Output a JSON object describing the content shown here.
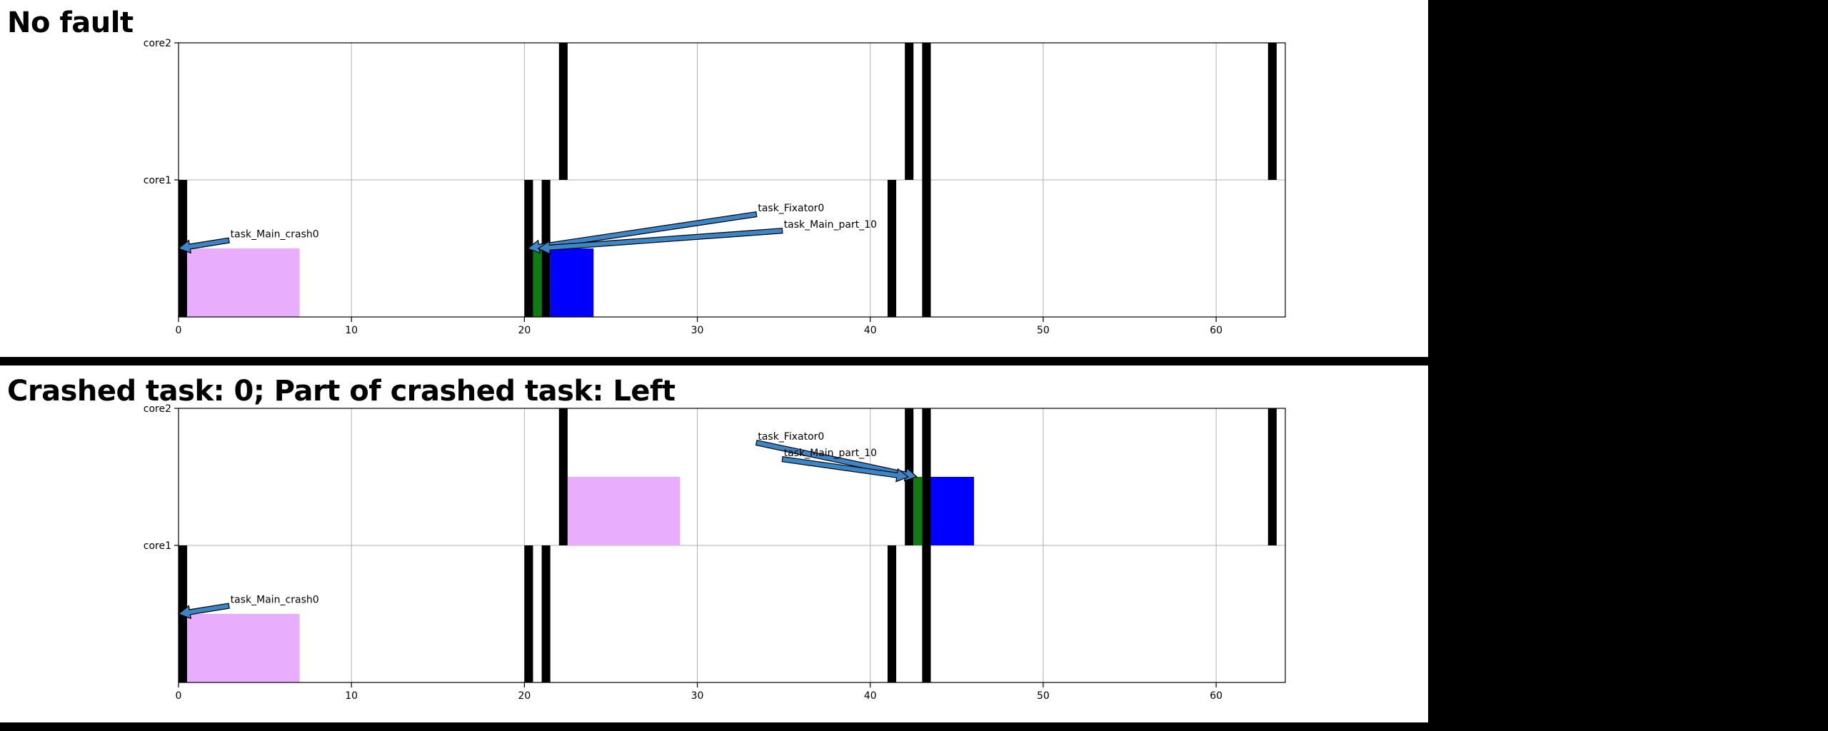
{
  "chart_data": [
    {
      "type": "gantt",
      "title": "No fault",
      "xlim": [
        0,
        64
      ],
      "x_ticks": [
        0,
        10,
        20,
        30,
        40,
        50,
        60
      ],
      "lanes": [
        "core1",
        "core2"
      ],
      "grid": true,
      "bars": [
        {
          "start": 0.0,
          "end": 0.5,
          "lane": "core1",
          "level": "full",
          "color": "#000000"
        },
        {
          "start": 20.0,
          "end": 20.5,
          "lane": "core1",
          "level": "full",
          "color": "#000000"
        },
        {
          "start": 21.0,
          "end": 21.5,
          "lane": "core1",
          "level": "full",
          "color": "#000000"
        },
        {
          "start": 41.0,
          "end": 41.5,
          "lane": "core1",
          "level": "full",
          "color": "#000000"
        },
        {
          "start": 43.0,
          "end": 43.5,
          "lane": "core1",
          "level": "full",
          "color": "#000000"
        },
        {
          "start": 22.0,
          "end": 22.5,
          "lane": "core2",
          "level": "full",
          "color": "#000000"
        },
        {
          "start": 42.0,
          "end": 42.5,
          "lane": "core2",
          "level": "full",
          "color": "#000000"
        },
        {
          "start": 43.0,
          "end": 43.5,
          "lane": "core2",
          "level": "full",
          "color": "#000000"
        },
        {
          "start": 63.0,
          "end": 63.5,
          "lane": "core2",
          "level": "full",
          "color": "#000000"
        },
        {
          "start": 0.5,
          "end": 7.0,
          "lane": "core1",
          "level": "half",
          "color": "#e8adfc"
        },
        {
          "start": 20.5,
          "end": 21.0,
          "lane": "core1",
          "level": "half",
          "color": "#117a11"
        },
        {
          "start": 21.5,
          "end": 24.0,
          "lane": "core1",
          "level": "half",
          "color": "#0000ff"
        }
      ],
      "annotations": [
        {
          "text": "task_Main_crash0",
          "point": [
            0.0,
            0.5
          ],
          "text_pos": [
            3.0,
            0.58
          ]
        },
        {
          "text": "task_Fixator0",
          "point": [
            20.2,
            0.5
          ],
          "text_pos": [
            33.5,
            0.77
          ]
        },
        {
          "text": "task_Main_part_10",
          "point": [
            20.8,
            0.5
          ],
          "text_pos": [
            35.0,
            0.65
          ]
        }
      ]
    },
    {
      "type": "gantt",
      "title": "Crashed task: 0; Part of crashed task: Left",
      "xlim": [
        0,
        64
      ],
      "x_ticks": [
        0,
        10,
        20,
        30,
        40,
        50,
        60
      ],
      "lanes": [
        "core1",
        "core2"
      ],
      "grid": true,
      "bars": [
        {
          "start": 0.0,
          "end": 0.5,
          "lane": "core1",
          "level": "full",
          "color": "#000000"
        },
        {
          "start": 20.0,
          "end": 20.5,
          "lane": "core1",
          "level": "full",
          "color": "#000000"
        },
        {
          "start": 21.0,
          "end": 21.5,
          "lane": "core1",
          "level": "full",
          "color": "#000000"
        },
        {
          "start": 41.0,
          "end": 41.5,
          "lane": "core1",
          "level": "full",
          "color": "#000000"
        },
        {
          "start": 43.0,
          "end": 43.5,
          "lane": "core1",
          "level": "full",
          "color": "#000000"
        },
        {
          "start": 22.0,
          "end": 22.5,
          "lane": "core2",
          "level": "full",
          "color": "#000000"
        },
        {
          "start": 42.0,
          "end": 42.5,
          "lane": "core2",
          "level": "full",
          "color": "#000000"
        },
        {
          "start": 43.0,
          "end": 43.5,
          "lane": "core2",
          "level": "full",
          "color": "#000000"
        },
        {
          "start": 63.0,
          "end": 63.5,
          "lane": "core2",
          "level": "full",
          "color": "#000000"
        },
        {
          "start": 0.5,
          "end": 7.0,
          "lane": "core1",
          "level": "half",
          "color": "#e8adfc"
        },
        {
          "start": 22.5,
          "end": 29.0,
          "lane": "core2",
          "level": "half",
          "color": "#e8adfc"
        },
        {
          "start": 42.5,
          "end": 43.0,
          "lane": "core2",
          "level": "half",
          "color": "#117a11"
        },
        {
          "start": 43.5,
          "end": 46.0,
          "lane": "core2",
          "level": "half",
          "color": "#0000ff"
        }
      ],
      "annotations": [
        {
          "text": "task_Main_crash0",
          "point": [
            0.0,
            0.5
          ],
          "text_pos": [
            3.0,
            0.58
          ]
        },
        {
          "text": "task_Fixator0",
          "point": [
            42.7,
            1.5
          ],
          "text_pos": [
            33.5,
            1.77
          ]
        },
        {
          "text": "task_Main_part_10",
          "point": [
            42.2,
            1.5
          ],
          "text_pos": [
            35.0,
            1.65
          ]
        }
      ]
    }
  ]
}
